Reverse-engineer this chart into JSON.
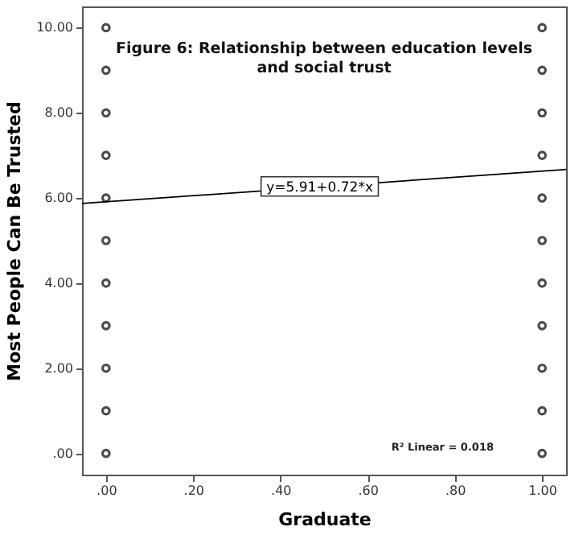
{
  "chart_data": {
    "type": "scatter",
    "title": "Figure 6: Relationship between education levels and social trust",
    "xlabel": "Graduate",
    "ylabel": "Most People Can Be Trusted",
    "xlim": [
      -0.055,
      1.055
    ],
    "ylim": [
      -0.5,
      10.5
    ],
    "xticks": [
      {
        "value": 0,
        "label": ".00"
      },
      {
        "value": 0.2,
        "label": ".20"
      },
      {
        "value": 0.4,
        "label": ".40"
      },
      {
        "value": 0.6,
        "label": ".60"
      },
      {
        "value": 0.8,
        "label": ".80"
      },
      {
        "value": 1,
        "label": "1.00"
      }
    ],
    "yticks": [
      {
        "value": 0,
        "label": ".00"
      },
      {
        "value": 2,
        "label": "2.00"
      },
      {
        "value": 4,
        "label": "4.00"
      },
      {
        "value": 6,
        "label": "6.00"
      },
      {
        "value": 8,
        "label": "8.00"
      },
      {
        "value": 10,
        "label": "10.00"
      }
    ],
    "grid": false,
    "series": [
      {
        "marker": "circle",
        "color": "#000000",
        "x": [
          0,
          0,
          0,
          0,
          0,
          0,
          0,
          0,
          0,
          0,
          0,
          1,
          1,
          1,
          1,
          1,
          1,
          1,
          1,
          1,
          1,
          1
        ],
        "values": [
          10,
          9,
          8,
          7,
          6,
          5,
          4,
          3,
          2,
          1,
          0,
          10,
          9,
          8,
          7,
          6,
          5,
          4,
          3,
          2,
          1,
          0
        ]
      },
      {
        "type": "line",
        "color": "#000000",
        "x": [
          -0.055,
          1.055
        ],
        "values": [
          5.87,
          6.67
        ]
      }
    ],
    "annotations": [
      {
        "text": "y=5.91+0.72*x",
        "x": 0.49,
        "y": 6.27
      },
      "R² Linear = 0.018"
    ]
  }
}
